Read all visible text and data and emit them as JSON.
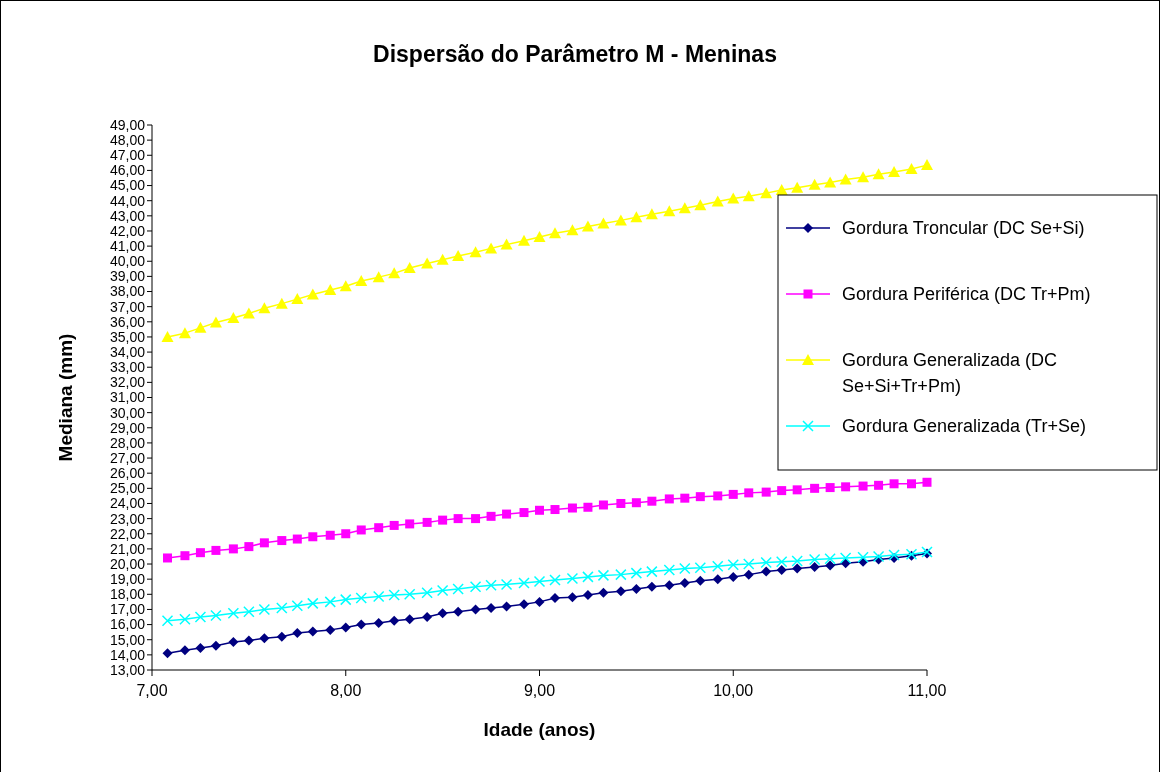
{
  "chart_data": {
    "type": "line",
    "title": "Dispersão do Parâmetro M - Meninas",
    "xlabel": "Idade (anos)",
    "ylabel": "Mediana (mm)",
    "x": [
      7.08,
      7.17,
      7.25,
      7.33,
      7.42,
      7.5,
      7.58,
      7.67,
      7.75,
      7.83,
      7.92,
      8.0,
      8.08,
      8.17,
      8.25,
      8.33,
      8.42,
      8.5,
      8.58,
      8.67,
      8.75,
      8.83,
      8.92,
      9.0,
      9.08,
      9.17,
      9.25,
      9.33,
      9.42,
      9.5,
      9.58,
      9.67,
      9.75,
      9.83,
      9.92,
      10.0,
      10.08,
      10.17,
      10.25,
      10.33,
      10.42,
      10.5,
      10.58,
      10.67,
      10.75,
      10.83,
      10.92,
      11.0
    ],
    "series": [
      {
        "name": "Gordura Troncular (DC Se+Si)",
        "color": "#000080",
        "marker": "diamond",
        "values": [
          14.1,
          14.3,
          14.45,
          14.6,
          14.85,
          14.95,
          15.1,
          15.2,
          15.45,
          15.55,
          15.65,
          15.8,
          16.0,
          16.1,
          16.25,
          16.35,
          16.5,
          16.75,
          16.85,
          17.0,
          17.1,
          17.2,
          17.35,
          17.5,
          17.75,
          17.8,
          17.95,
          18.1,
          18.2,
          18.35,
          18.5,
          18.6,
          18.75,
          18.9,
          19.0,
          19.15,
          19.3,
          19.5,
          19.6,
          19.7,
          19.8,
          19.9,
          20.05,
          20.15,
          20.3,
          20.4,
          20.55,
          20.7
        ]
      },
      {
        "name": "Gordura Periférica (DC Tr+Pm)",
        "color": "#ff00ff",
        "marker": "square",
        "values": [
          20.4,
          20.55,
          20.75,
          20.9,
          21.0,
          21.15,
          21.4,
          21.55,
          21.65,
          21.8,
          21.9,
          22.0,
          22.25,
          22.4,
          22.55,
          22.65,
          22.75,
          22.9,
          23.0,
          23.0,
          23.15,
          23.3,
          23.4,
          23.55,
          23.6,
          23.7,
          23.75,
          23.9,
          24.0,
          24.05,
          24.15,
          24.3,
          24.35,
          24.45,
          24.5,
          24.6,
          24.7,
          24.75,
          24.85,
          24.9,
          25.0,
          25.05,
          25.1,
          25.15,
          25.2,
          25.3,
          25.3,
          25.4
        ]
      },
      {
        "name": "Gordura Generalizada (DC Se+Si+Tr+Pm)",
        "color": "#ffff00",
        "marker": "triangle",
        "values": [
          35.0,
          35.25,
          35.6,
          35.95,
          36.25,
          36.55,
          36.9,
          37.2,
          37.5,
          37.8,
          38.1,
          38.35,
          38.7,
          38.95,
          39.2,
          39.55,
          39.85,
          40.1,
          40.35,
          40.6,
          40.85,
          41.1,
          41.35,
          41.6,
          41.85,
          42.05,
          42.3,
          42.5,
          42.7,
          42.9,
          43.1,
          43.3,
          43.5,
          43.7,
          43.95,
          44.15,
          44.3,
          44.5,
          44.7,
          44.85,
          45.05,
          45.2,
          45.4,
          45.55,
          45.75,
          45.9,
          46.1,
          46.35
        ]
      },
      {
        "name": "Gordura Generalizada (Tr+Se)",
        "color": "#00ffff",
        "marker": "cross",
        "values": [
          16.25,
          16.35,
          16.5,
          16.6,
          16.75,
          16.85,
          17.0,
          17.1,
          17.25,
          17.4,
          17.5,
          17.65,
          17.75,
          17.85,
          17.95,
          18.0,
          18.1,
          18.25,
          18.35,
          18.5,
          18.6,
          18.65,
          18.75,
          18.85,
          18.95,
          19.05,
          19.15,
          19.25,
          19.3,
          19.4,
          19.5,
          19.6,
          19.7,
          19.75,
          19.85,
          19.95,
          20.0,
          20.1,
          20.15,
          20.2,
          20.3,
          20.35,
          20.4,
          20.45,
          20.5,
          20.6,
          20.65,
          20.8
        ]
      }
    ],
    "xlim": [
      7,
      11
    ],
    "xticks": [
      {
        "value": 7,
        "label": "7,00"
      },
      {
        "value": 8,
        "label": "8,00"
      },
      {
        "value": 9,
        "label": "9,00"
      },
      {
        "value": 10,
        "label": "10,00"
      },
      {
        "value": 11,
        "label": "11,00"
      }
    ],
    "ylim": [
      13,
      49
    ],
    "yticks": [
      {
        "value": 13,
        "label": "13,00"
      },
      {
        "value": 14,
        "label": "14,00"
      },
      {
        "value": 15,
        "label": "15,00"
      },
      {
        "value": 16,
        "label": "16,00"
      },
      {
        "value": 17,
        "label": "17,00"
      },
      {
        "value": 18,
        "label": "18,00"
      },
      {
        "value": 19,
        "label": "19,00"
      },
      {
        "value": 20,
        "label": "20,00"
      },
      {
        "value": 21,
        "label": "21,00"
      },
      {
        "value": 22,
        "label": "22,00"
      },
      {
        "value": 23,
        "label": "23,00"
      },
      {
        "value": 24,
        "label": "24,00"
      },
      {
        "value": 25,
        "label": "25,00"
      },
      {
        "value": 26,
        "label": "26,00"
      },
      {
        "value": 27,
        "label": "27,00"
      },
      {
        "value": 28,
        "label": "28,00"
      },
      {
        "value": 29,
        "label": "29,00"
      },
      {
        "value": 30,
        "label": "30,00"
      },
      {
        "value": 31,
        "label": "31,00"
      },
      {
        "value": 32,
        "label": "32,00"
      },
      {
        "value": 33,
        "label": "33,00"
      },
      {
        "value": 34,
        "label": "34,00"
      },
      {
        "value": 35,
        "label": "35,00"
      },
      {
        "value": 36,
        "label": "36,00"
      },
      {
        "value": 37,
        "label": "37,00"
      },
      {
        "value": 38,
        "label": "38,00"
      },
      {
        "value": 39,
        "label": "39,00"
      },
      {
        "value": 40,
        "label": "40,00"
      },
      {
        "value": 41,
        "label": "41,00"
      },
      {
        "value": 42,
        "label": "42,00"
      },
      {
        "value": 43,
        "label": "43,00"
      },
      {
        "value": 44,
        "label": "44,00"
      },
      {
        "value": 45,
        "label": "45,00"
      },
      {
        "value": 46,
        "label": "46,00"
      },
      {
        "value": 47,
        "label": "47,00"
      },
      {
        "value": 48,
        "label": "48,00"
      },
      {
        "value": 49,
        "label": "49,00"
      }
    ],
    "grid": false,
    "legend": "right"
  }
}
